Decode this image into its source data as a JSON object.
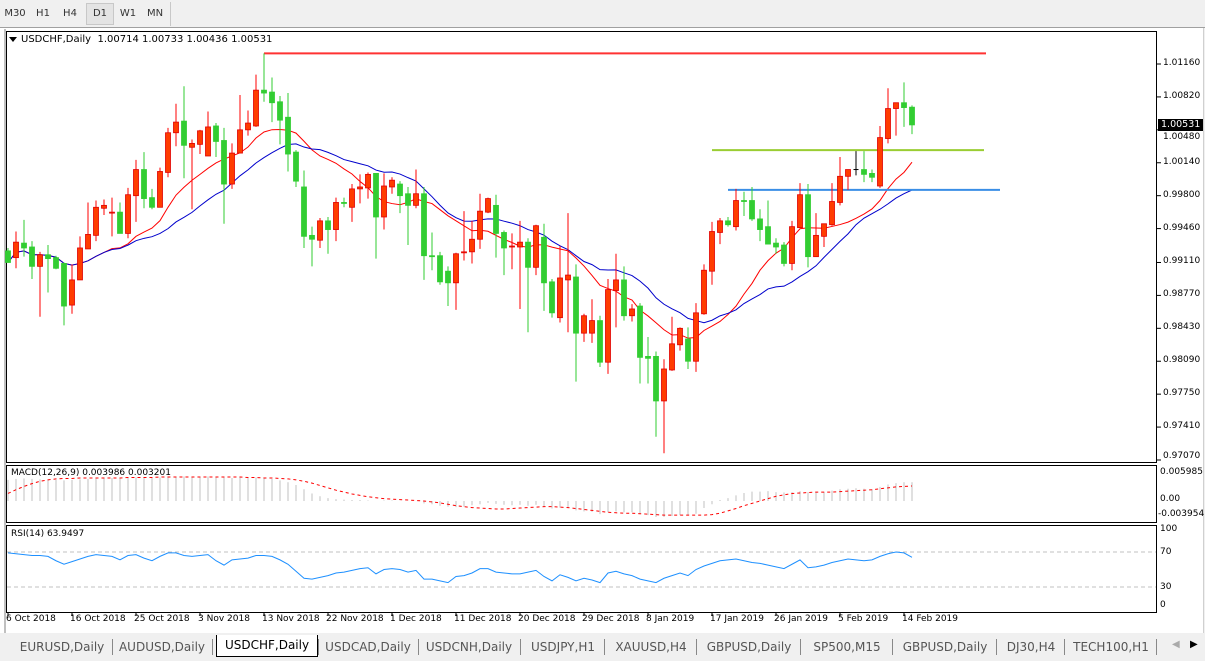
{
  "toolbar": {
    "timeframes": [
      "M30",
      "H1",
      "H4",
      "D1",
      "W1",
      "MN"
    ],
    "active": "D1"
  },
  "chart": {
    "symbol_label": "USDCHF,Daily",
    "ohlc_label": "1.00714 1.00733 1.00436 1.00531",
    "current_price": "1.00531",
    "price_axis_labels": [
      "1.01160",
      "1.00820",
      "1.00480",
      "1.00140",
      "0.99800",
      "0.99460",
      "0.99110",
      "0.98770",
      "0.98430",
      "0.98090",
      "0.97750",
      "0.97410",
      "0.97070"
    ],
    "date_labels": [
      "6 Oct 2018",
      "16 Oct 2018",
      "25 Oct 2018",
      "3 Nov 2018",
      "13 Nov 2018",
      "22 Nov 2018",
      "1 Dec 2018",
      "11 Dec 2018",
      "20 Dec 2018",
      "29 Dec 2018",
      "8 Jan 2019",
      "17 Jan 2019",
      "26 Jan 2019",
      "5 Feb 2019",
      "14 Feb 2019"
    ],
    "colors": {
      "bull": "#ff3c00",
      "bear": "#32cd32",
      "ma_fast": "#ff0000",
      "ma_slow": "#0000cc",
      "macd_hist": "#c0c0c0",
      "macd_signal": "#ff0000",
      "rsi": "#1e90ff"
    },
    "horizontal_lines": [
      {
        "price": 1.0127,
        "color": "#ff3333",
        "from_index": 32
      },
      {
        "price": 1.0027,
        "color": "#9acd32",
        "from_index": 88
      },
      {
        "price": 0.9986,
        "color": "#3a8ee6",
        "from_index": 90
      }
    ],
    "ma_periods": [
      13,
      21
    ],
    "candles": [
      [
        0.9923,
        0.9926,
        0.9911,
        0.9911
      ],
      [
        0.9916,
        0.9943,
        0.9905,
        0.9932
      ],
      [
        0.9931,
        0.9955,
        0.9917,
        0.9926
      ],
      [
        0.9927,
        0.9933,
        0.9894,
        0.9907
      ],
      [
        0.9907,
        0.9922,
        0.9855,
        0.9919
      ],
      [
        0.9919,
        0.9929,
        0.988,
        0.9915
      ],
      [
        0.9916,
        0.9918,
        0.9904,
        0.9905
      ],
      [
        0.991,
        0.9911,
        0.9846,
        0.9866
      ],
      [
        0.9867,
        0.9909,
        0.9858,
        0.9893
      ],
      [
        0.9893,
        0.9938,
        0.9893,
        0.9926
      ],
      [
        0.9925,
        0.9973,
        0.9925,
        0.994
      ],
      [
        0.9939,
        0.9975,
        0.9933,
        0.9968
      ],
      [
        0.9967,
        0.9976,
        0.996,
        0.997
      ],
      [
        0.9962,
        0.9978,
        0.9938,
        0.9963
      ],
      [
        0.9963,
        0.9973,
        0.9941,
        0.9941
      ],
      [
        0.9941,
        0.9988,
        0.9936,
        0.9981
      ],
      [
        0.998,
        1.0017,
        0.9953,
        1.0007
      ],
      [
        1.0007,
        1.0025,
        0.9967,
        0.9977
      ],
      [
        0.9978,
        0.9987,
        0.9966,
        0.9968
      ],
      [
        0.9968,
        1.0009,
        0.9968,
        1.0005
      ],
      [
        1.0004,
        1.005,
        0.9999,
        1.0045
      ],
      [
        1.0045,
        1.0075,
        1.0031,
        1.0056
      ],
      [
        1.0057,
        1.0093,
        0.9998,
        1.0032
      ],
      [
        1.003,
        1.0038,
        0.9966,
        1.0034
      ],
      [
        1.0033,
        1.0048,
        1.0023,
        1.0047
      ],
      [
        1.0021,
        1.0067,
        1.0021,
        1.0051
      ],
      [
        1.0052,
        1.0055,
        1.002,
        1.0036
      ],
      [
        1.0037,
        1.005,
        0.9951,
        0.9992
      ],
      [
        0.9992,
        1.0034,
        0.9987,
        1.0024
      ],
      [
        1.0024,
        1.0084,
        1.0024,
        1.0048
      ],
      [
        1.0048,
        1.0068,
        1.0042,
        1.0055
      ],
      [
        1.0052,
        1.0105,
        1.0051,
        1.0089
      ],
      [
        1.0089,
        1.0127,
        1.0077,
        1.0086
      ],
      [
        1.0087,
        1.0102,
        1.0056,
        1.0076
      ],
      [
        1.0077,
        1.0083,
        1.0033,
        1.0058
      ],
      [
        1.0061,
        1.0086,
        1.0005,
        1.0023
      ],
      [
        1.0025,
        1.0027,
        0.9989,
        0.9995
      ],
      [
        0.9989,
        1.0006,
        0.9926,
        0.9938
      ],
      [
        0.9939,
        0.9948,
        0.9907,
        0.9935
      ],
      [
        0.9934,
        0.9957,
        0.9926,
        0.9954
      ],
      [
        0.9954,
        0.9958,
        0.992,
        0.9945
      ],
      [
        0.9945,
        0.9978,
        0.9933,
        0.9973
      ],
      [
        0.9973,
        0.9978,
        0.9968,
        0.9972
      ],
      [
        0.9968,
        0.9992,
        0.9953,
        0.9987
      ],
      [
        0.9987,
        1.0002,
        0.9972,
        0.9989
      ],
      [
        0.9988,
        1.0004,
        0.9977,
        1.0002
      ],
      [
        1.0003,
        1.0003,
        0.9915,
        0.9958
      ],
      [
        0.9958,
        1.0003,
        0.9945,
        0.999
      ],
      [
        0.9989,
        0.9999,
        0.9982,
        0.9996
      ],
      [
        0.9992,
        0.9995,
        0.9962,
        0.998
      ],
      [
        0.9982,
        0.9989,
        0.9929,
        0.997
      ],
      [
        0.997,
        1.0007,
        0.9967,
        0.9982
      ],
      [
        0.9982,
        0.9989,
        0.9893,
        0.9918
      ],
      [
        0.9918,
        0.9942,
        0.9903,
        0.9917
      ],
      [
        0.9918,
        0.9922,
        0.9888,
        0.9891
      ],
      [
        0.9902,
        0.9907,
        0.9866,
        0.989
      ],
      [
        0.989,
        0.9921,
        0.9862,
        0.992
      ],
      [
        0.9921,
        0.9964,
        0.9913,
        0.9922
      ],
      [
        0.9922,
        0.9954,
        0.991,
        0.9935
      ],
      [
        0.9935,
        0.9982,
        0.9925,
        0.9964
      ],
      [
        0.9963,
        0.9978,
        0.9962,
        0.9977
      ],
      [
        0.997,
        0.9981,
        0.9916,
        0.9941
      ],
      [
        0.9942,
        0.9944,
        0.9898,
        0.9926
      ],
      [
        0.9927,
        0.9941,
        0.9904,
        0.9928
      ],
      [
        0.9927,
        0.9954,
        0.9863,
        0.9932
      ],
      [
        0.9932,
        0.9936,
        0.9839,
        0.9906
      ],
      [
        0.9906,
        0.995,
        0.9898,
        0.9949
      ],
      [
        0.9937,
        0.9951,
        0.9861,
        0.989
      ],
      [
        0.9891,
        0.9894,
        0.9854,
        0.9859
      ],
      [
        0.9854,
        0.9928,
        0.9849,
        0.9895
      ],
      [
        0.9893,
        0.9962,
        0.9839,
        0.9898
      ],
      [
        0.9896,
        0.9909,
        0.9788,
        0.9838
      ],
      [
        0.9838,
        0.9858,
        0.9829,
        0.9856
      ],
      [
        0.9838,
        0.9873,
        0.9828,
        0.9851
      ],
      [
        0.9851,
        0.9856,
        0.9803,
        0.9808
      ],
      [
        0.9808,
        0.9894,
        0.9796,
        0.9883
      ],
      [
        0.9882,
        0.992,
        0.9844,
        0.9893
      ],
      [
        0.9893,
        0.9907,
        0.9851,
        0.9856
      ],
      [
        0.9856,
        0.9868,
        0.985,
        0.9863
      ],
      [
        0.9866,
        0.9869,
        0.9786,
        0.9813
      ],
      [
        0.9814,
        0.9834,
        0.9786,
        0.9812
      ],
      [
        0.9814,
        0.9819,
        0.9731,
        0.9768
      ],
      [
        0.9768,
        0.9811,
        0.9714,
        0.9801
      ],
      [
        0.98,
        0.9855,
        0.9799,
        0.9827
      ],
      [
        0.9826,
        0.9844,
        0.982,
        0.9843
      ],
      [
        0.9832,
        0.9844,
        0.9801,
        0.9809
      ],
      [
        0.9809,
        0.9869,
        0.9798,
        0.9859
      ],
      [
        0.9858,
        0.9909,
        0.9857,
        0.9903
      ],
      [
        0.9902,
        0.9953,
        0.9888,
        0.9943
      ],
      [
        0.9942,
        0.9957,
        0.993,
        0.9954
      ],
      [
        0.9954,
        0.9958,
        0.9948,
        0.995
      ],
      [
        0.9948,
        0.9987,
        0.9944,
        0.9975
      ],
      [
        0.9975,
        0.9984,
        0.9959,
        0.9974
      ],
      [
        0.9975,
        0.9989,
        0.9954,
        0.9956
      ],
      [
        0.9956,
        0.9966,
        0.9933,
        0.9945
      ],
      [
        0.9948,
        0.9975,
        0.993,
        0.993
      ],
      [
        0.9931,
        0.9936,
        0.992,
        0.9927
      ],
      [
        0.9929,
        0.9932,
        0.9907,
        0.991
      ],
      [
        0.991,
        0.9954,
        0.9903,
        0.9948
      ],
      [
        0.9947,
        0.9993,
        0.9947,
        0.9981
      ],
      [
        0.9981,
        0.9992,
        0.9906,
        0.9917
      ],
      [
        0.9917,
        0.9962,
        0.9917,
        0.9939
      ],
      [
        0.9938,
        0.9951,
        0.9927,
        0.9951
      ],
      [
        0.995,
        0.9993,
        0.9949,
        0.9974
      ],
      [
        0.9973,
        1.002,
        0.997,
        1.0
      ],
      [
        1.0,
        1.0007,
        0.9986,
        1.0007
      ],
      [
        1.0007,
        1.0026,
        1.0001,
        1.0007
      ],
      [
        1.0007,
        1.0026,
        0.9994,
        1.0002
      ],
      [
        1.0003,
        1.0007,
        0.9994,
        0.9999
      ],
      [
        0.999,
        1.0052,
        0.9988,
        1.004
      ],
      [
        1.0039,
        1.0091,
        1.0034,
        1.007
      ],
      [
        1.007,
        1.0076,
        1.0042,
        1.0076
      ],
      [
        1.0076,
        1.0097,
        1.0051,
        1.0071
      ],
      [
        1.00714,
        1.00733,
        1.00436,
        1.00531
      ]
    ]
  },
  "macd": {
    "label": "MACD(12,26,9) 0.003986 0.003201",
    "axis_labels": [
      "0.005985",
      "0.00",
      "-0.003954"
    ],
    "main": [
      0.0045,
      0.0047,
      0.0048,
      0.0047,
      0.0046,
      0.0046,
      0.0045,
      0.0044,
      0.0045,
      0.0046,
      0.0047,
      0.0048,
      0.0049,
      0.0049,
      0.0048,
      0.0049,
      0.005,
      0.005,
      0.0049,
      0.005,
      0.0051,
      0.0052,
      0.0052,
      0.0051,
      0.0051,
      0.0052,
      0.0052,
      0.005,
      0.0049,
      0.005,
      0.0049,
      0.005,
      0.0049,
      0.0047,
      0.0044,
      0.004,
      0.0034,
      0.0025,
      0.0016,
      0.001,
      0.0006,
      0.0004,
      0.0003,
      0.0002,
      0.0002,
      0.0001,
      0,
      0.0001,
      0.0001,
      0,
      0,
      0,
      -0.0005,
      -0.0007,
      -0.001,
      -0.0012,
      -0.0013,
      -0.0012,
      -0.0009,
      -0.0007,
      -0.0004,
      -0.0006,
      -0.0008,
      -0.0009,
      -0.0008,
      -0.001,
      -0.0008,
      -0.0012,
      -0.0016,
      -0.0014,
      -0.0015,
      -0.002,
      -0.0022,
      -0.0023,
      -0.0028,
      -0.0024,
      -0.0022,
      -0.0024,
      -0.0024,
      -0.0028,
      -0.003,
      -0.0034,
      -0.0034,
      -0.0032,
      -0.003,
      -0.003,
      -0.0027,
      -0.0015,
      -0.0007,
      0.0002,
      0.0006,
      0.0012,
      0.0017,
      0.002,
      0.002,
      0.0021,
      0.0019,
      0.0018,
      0.0019,
      0.0021,
      0.0019,
      0.0019,
      0.0019,
      0.0022,
      0.0025,
      0.0026,
      0.0027,
      0.0026,
      0.0025,
      0.003,
      0.0035,
      0.0038,
      0.004,
      0.003986
    ],
    "signal": [
      0.0016,
      0.0024,
      0.0031,
      0.0037,
      0.0042,
      0.0045,
      0.0047,
      0.0048,
      0.0048,
      0.0049,
      0.0049,
      0.0049,
      0.0049,
      0.0049,
      0.0049,
      0.005,
      0.005,
      0.005,
      0.005,
      0.0051,
      0.0051,
      0.0051,
      0.0051,
      0.0051,
      0.0051,
      0.0051,
      0.0051,
      0.0051,
      0.0051,
      0.0051,
      0.005,
      0.005,
      0.0049,
      0.0049,
      0.0048,
      0.0047,
      0.0045,
      0.0042,
      0.0038,
      0.0033,
      0.0028,
      0.0023,
      0.0019,
      0.0015,
      0.0012,
      0.0009,
      0.0007,
      0.0005,
      0.0004,
      0.0003,
      0.0002,
      0.0001,
      0,
      -0.0002,
      -0.0004,
      -0.0007,
      -0.001,
      -0.0012,
      -0.0014,
      -0.0015,
      -0.0016,
      -0.0017,
      -0.0017,
      -0.0016,
      -0.0015,
      -0.0014,
      -0.0013,
      -0.0012,
      -0.0012,
      -0.0013,
      -0.0014,
      -0.0016,
      -0.0018,
      -0.002,
      -0.0022,
      -0.0024,
      -0.0025,
      -0.0026,
      -0.0026,
      -0.0027,
      -0.0028,
      -0.0029,
      -0.003,
      -0.003,
      -0.003,
      -0.003,
      -0.003,
      -0.003,
      -0.0029,
      -0.0026,
      -0.0021,
      -0.0016,
      -0.001,
      -0.0005,
      0,
      0.0005,
      0.001,
      0.0013,
      0.0016,
      0.0017,
      0.0018,
      0.0019,
      0.0019,
      0.0019,
      0.002,
      0.0021,
      0.0022,
      0.0023,
      0.0024,
      0.0026,
      0.0028,
      0.003,
      0.0031,
      0.003201
    ]
  },
  "rsi": {
    "label": "RSI(14) 63.9497",
    "axis_labels": [
      "100",
      "70",
      "30",
      "0"
    ],
    "levels": [
      70,
      30
    ],
    "values": [
      69,
      68,
      67,
      66,
      66,
      65,
      60,
      56,
      59,
      62,
      65,
      67,
      66,
      65,
      61,
      66,
      67,
      63,
      60,
      65,
      69,
      69,
      66,
      65,
      66,
      67,
      60,
      55,
      61,
      62,
      63,
      66,
      66,
      65,
      61,
      56,
      48,
      40,
      39,
      41,
      43,
      46,
      47,
      49,
      51,
      52,
      45,
      50,
      51,
      50,
      47,
      49,
      39,
      39,
      37,
      35,
      42,
      43,
      46,
      51,
      51,
      47,
      46,
      45,
      45,
      47,
      49,
      42,
      37,
      44,
      41,
      37,
      40,
      38,
      35,
      46,
      48,
      45,
      43,
      39,
      37,
      35,
      40,
      43,
      46,
      43,
      50,
      54,
      57,
      60,
      61,
      62,
      60,
      58,
      57,
      55,
      53,
      51,
      56,
      61,
      52,
      53,
      55,
      58,
      60,
      62,
      61,
      60,
      61,
      65,
      68,
      70,
      69,
      63.9497
    ]
  },
  "tabs": [
    {
      "label": "EURUSD,Daily"
    },
    {
      "label": "AUDUSD,Daily"
    },
    {
      "label": "USDCHF,Daily",
      "active": true
    },
    {
      "label": "USDCAD,Daily"
    },
    {
      "label": "USDCNH,Daily"
    },
    {
      "label": "USDJPY,H1"
    },
    {
      "label": "XAUUSD,H4"
    },
    {
      "label": "GBPUSD,Daily"
    },
    {
      "label": "SP500,M15"
    },
    {
      "label": "GBPUSD,Daily"
    },
    {
      "label": "DJ30,H4"
    },
    {
      "label": "TECH100,H1"
    }
  ]
}
